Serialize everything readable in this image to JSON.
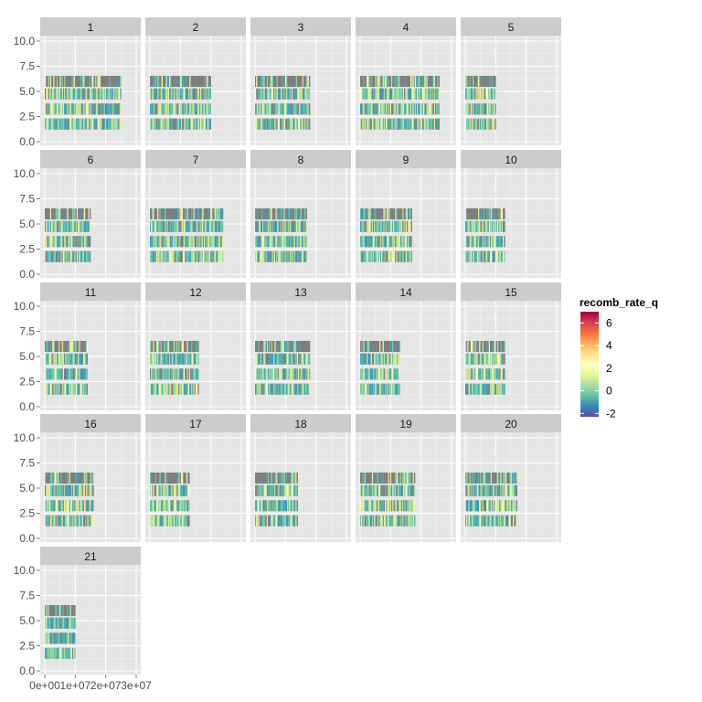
{
  "chart_data": {
    "type": "heatmap",
    "title": "",
    "xlabel": "",
    "ylabel": "",
    "facet_by": "chromosome",
    "facets": [
      "1",
      "2",
      "3",
      "4",
      "5",
      "6",
      "7",
      "8",
      "9",
      "10",
      "11",
      "12",
      "13",
      "14",
      "15",
      "16",
      "17",
      "18",
      "19",
      "20",
      "21"
    ],
    "chromosome_length": {
      "1": 25000000.0,
      "2": 20000000.0,
      "3": 18000000.0,
      "4": 26000000.0,
      "5": 10000000.0,
      "6": 15000000.0,
      "7": 24000000.0,
      "8": 17000000.0,
      "9": 17000000.0,
      "10": 13000000.0,
      "11": 14000000.0,
      "12": 16000000.0,
      "13": 18000000.0,
      "14": 13000000.0,
      "15": 13000000.0,
      "16": 16000000.0,
      "17": 13000000.0,
      "18": 14000000.0,
      "19": 18000000.0,
      "20": 17000000.0,
      "21": 10000000.0
    },
    "y_tracks": [
      1.75,
      3.25,
      4.75,
      6.0
    ],
    "x_ticks": [
      0,
      10000000,
      20000000,
      30000000
    ],
    "x_tick_labels": [
      "0e+00",
      "1e+07",
      "2e+07",
      "3e+07"
    ],
    "xlim": [
      0,
      30000000
    ],
    "y_ticks": [
      0,
      2.5,
      5,
      7.5,
      10
    ],
    "y_tick_labels": [
      "0.0",
      "2.5",
      "5.0",
      "7.5",
      "10.0"
    ],
    "ylim": [
      0,
      10
    ],
    "legend": {
      "title": "recomb_rate_q",
      "labels": [
        "6",
        "4",
        "2",
        "0",
        "-2"
      ],
      "values": [
        6,
        4,
        2,
        0,
        -2
      ],
      "range": [
        -2.3,
        7
      ],
      "palette": "Spectral",
      "placement": "right"
    },
    "missing_color": "#7f7f7f",
    "grid": true
  }
}
